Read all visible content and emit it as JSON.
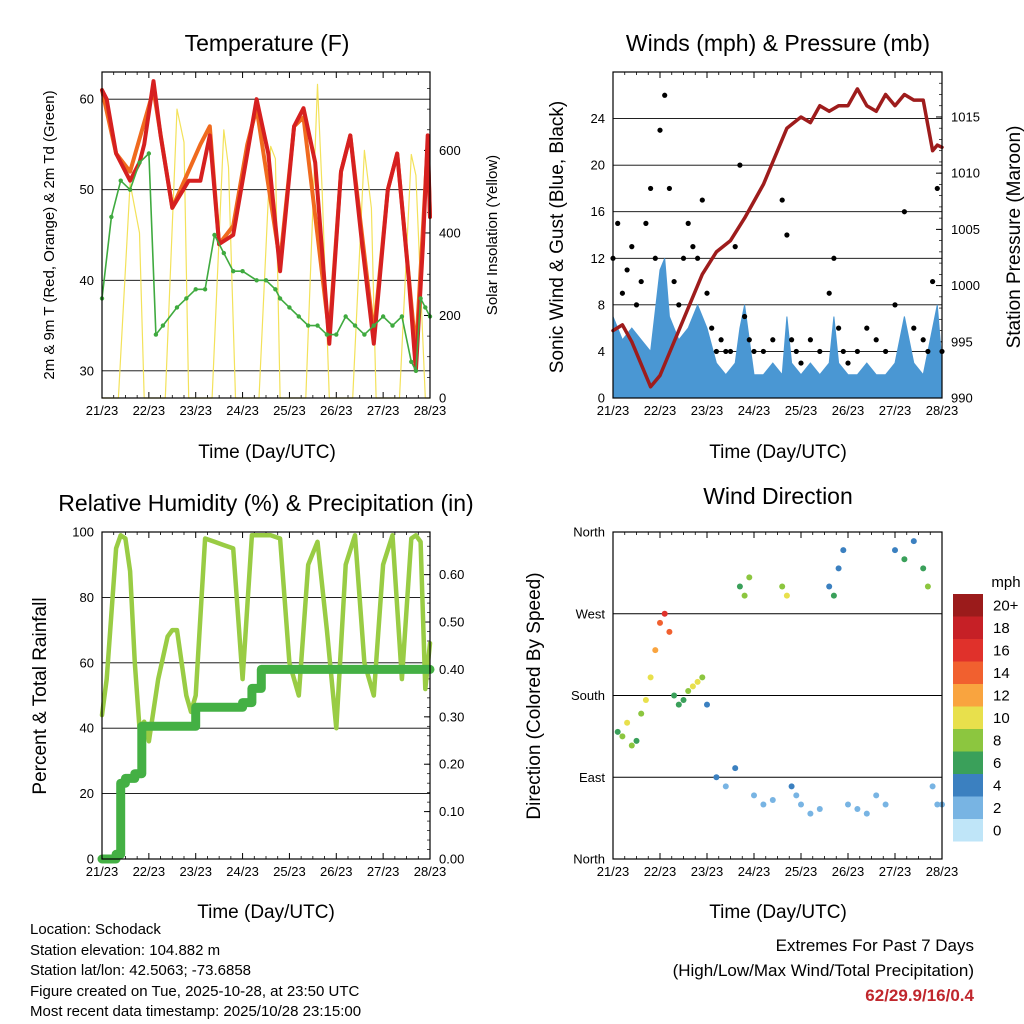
{
  "colors": {
    "t2m": "#d62020",
    "t9m": "#f06a1e",
    "td": "#3faa3f",
    "solar": "#f3e25a",
    "gust": "#000000",
    "wind": "#4a97d3",
    "pressure": "#9e1c1c",
    "rh": "#99cc44",
    "precip": "#44b044",
    "extremes": "#c0272d"
  },
  "time_ticks": [
    "21/23",
    "22/23",
    "23/23",
    "24/23",
    "25/23",
    "26/23",
    "27/23",
    "28/23"
  ],
  "panels": {
    "temperature": {
      "title": "Temperature (F)",
      "xlabel": "Time (Day/UTC)",
      "ylabel_left": "2m & 9m T (Red, Orange) & 2m Td (Green)",
      "ylabel_right": "Solar Insolation (Yellow)"
    },
    "winds": {
      "title": "Winds (mph) & Pressure (mb)",
      "xlabel": "Time (Day/UTC)",
      "ylabel_left": "Sonic Wind & Gust (Blue, Black)",
      "ylabel_right": "Station Pressure (Maroon)"
    },
    "humidity": {
      "title": "Relative Humidity (%) & Precipitation (in)",
      "xlabel": "Time (Day/UTC)",
      "ylabel_left": "Percent & Total Rainfall"
    },
    "direction": {
      "title": "Wind Direction",
      "xlabel": "Time (Day/UTC)",
      "ylabel_left": "Direction (Colored By Speed)",
      "colorbar_title": "mph",
      "colorbar_labels": [
        "20+",
        "18",
        "16",
        "14",
        "12",
        "10",
        "8",
        "6",
        "4",
        "2",
        "0"
      ],
      "colorbar_colors": [
        "#9b1b1b",
        "#c62026",
        "#e0312b",
        "#f1602f",
        "#f9a43f",
        "#e8e04c",
        "#8cc63f",
        "#3aa05a",
        "#3b80c0",
        "#78b4e3",
        "#bfe5f8"
      ]
    }
  },
  "chart_data": [
    {
      "type": "line",
      "name": "temperature",
      "title": "Temperature (F)",
      "xlabel": "Time (Day/UTC)",
      "xlim": [
        0,
        7
      ],
      "ylim": [
        27,
        63
      ],
      "y_ticks": [
        30,
        40,
        50,
        60
      ],
      "y2lim": [
        0,
        790
      ],
      "y2_ticks": [
        0,
        200,
        400,
        600
      ],
      "series": [
        {
          "name": "2m T",
          "axis": "left",
          "x": [
            0,
            0.1,
            0.3,
            0.6,
            0.8,
            0.9,
            1.1,
            1.25,
            1.5,
            1.85,
            2.1,
            2.3,
            2.5,
            2.8,
            3.1,
            3.3,
            3.55,
            3.8,
            4.1,
            4.3,
            4.55,
            4.85,
            5.1,
            5.3,
            5.55,
            5.8,
            6.1,
            6.3,
            6.55,
            6.7,
            6.85,
            6.95,
            7.0
          ],
          "values": [
            61,
            60,
            54,
            51,
            53,
            55,
            62,
            56,
            48,
            51,
            51,
            56,
            44,
            45,
            54,
            60,
            54,
            41,
            57,
            59,
            53,
            33,
            52,
            56,
            44,
            33,
            50,
            54,
            40,
            30,
            44,
            56,
            47
          ]
        },
        {
          "name": "9m T",
          "axis": "left",
          "x": [
            0,
            0.3,
            0.6,
            1.1,
            1.5,
            2.1,
            2.3,
            2.5,
            2.8,
            3.1,
            3.3,
            3.8,
            4.1,
            4.3,
            4.85,
            5.1,
            5.3,
            5.8,
            6.1,
            6.3,
            6.7,
            6.95,
            7.0
          ],
          "values": [
            61,
            54,
            52,
            61,
            48,
            55,
            57,
            44,
            46,
            55,
            59,
            42,
            57,
            58,
            34,
            52,
            56,
            34,
            50,
            54,
            32,
            55,
            47
          ]
        },
        {
          "name": "2m Td",
          "axis": "left",
          "x": [
            0,
            0.2,
            0.4,
            0.6,
            0.8,
            1.0,
            1.15,
            1.3,
            1.6,
            1.8,
            2.0,
            2.2,
            2.4,
            2.6,
            2.8,
            3.0,
            3.3,
            3.5,
            3.7,
            3.8,
            4.0,
            4.2,
            4.4,
            4.6,
            4.8,
            5.0,
            5.2,
            5.4,
            5.6,
            5.8,
            6.0,
            6.2,
            6.4,
            6.6,
            6.7,
            6.8,
            6.9,
            7.0
          ],
          "values": [
            38,
            47,
            51,
            50,
            53,
            54,
            34,
            35,
            37,
            38,
            39,
            39,
            45,
            43,
            41,
            41,
            40,
            40,
            39,
            38,
            37,
            36,
            35,
            35,
            34,
            34,
            36,
            35,
            34,
            35,
            36,
            35,
            36,
            31,
            30,
            38,
            37,
            36
          ]
        },
        {
          "name": "Solar Insolation",
          "axis": "right",
          "x": [
            0,
            0.35,
            0.6,
            0.8,
            0.9,
            1.35,
            1.6,
            1.75,
            1.85,
            2.35,
            2.6,
            2.7,
            2.85,
            3.35,
            3.6,
            3.7,
            3.8,
            4.35,
            4.6,
            4.7,
            4.85,
            5.35,
            5.6,
            5.75,
            5.85,
            6.35,
            6.6,
            6.7,
            6.9,
            7.0
          ],
          "values": [
            0,
            0,
            520,
            400,
            0,
            0,
            700,
            620,
            0,
            0,
            650,
            560,
            0,
            0,
            610,
            580,
            0,
            0,
            760,
            500,
            0,
            0,
            600,
            460,
            0,
            0,
            590,
            540,
            0,
            0
          ]
        }
      ]
    },
    {
      "type": "scatter",
      "name": "winds",
      "title": "Winds (mph) & Pressure (mb)",
      "xlabel": "Time (Day/UTC)",
      "xlim": [
        0,
        7
      ],
      "ylim": [
        0,
        28
      ],
      "y_ticks": [
        0,
        4,
        8,
        12,
        16,
        20,
        24
      ],
      "y2lim": [
        990,
        1019
      ],
      "y2_ticks": [
        990,
        995,
        1000,
        1005,
        1010,
        1015
      ],
      "series": [
        {
          "name": "Gust",
          "kind": "points",
          "x": [
            0,
            0.1,
            0.2,
            0.3,
            0.4,
            0.5,
            0.6,
            0.7,
            0.8,
            0.9,
            1.0,
            1.1,
            1.2,
            1.3,
            1.4,
            1.5,
            1.6,
            1.7,
            1.8,
            1.9,
            2.0,
            2.1,
            2.2,
            2.3,
            2.4,
            2.5,
            2.6,
            2.7,
            2.8,
            2.9,
            3.0,
            3.2,
            3.4,
            3.6,
            3.7,
            3.8,
            3.9,
            4.0,
            4.2,
            4.4,
            4.6,
            4.7,
            4.8,
            4.9,
            5.0,
            5.2,
            5.4,
            5.6,
            5.8,
            6.0,
            6.2,
            6.4,
            6.6,
            6.7,
            6.8,
            6.9,
            7.0
          ],
          "values": [
            12,
            15,
            9,
            11,
            13,
            8,
            10,
            15,
            18,
            12,
            23,
            26,
            18,
            10,
            8,
            12,
            15,
            13,
            12,
            17,
            9,
            6,
            4,
            5,
            4,
            4,
            13,
            20,
            7,
            5,
            4,
            4,
            5,
            17,
            14,
            5,
            4,
            3,
            5,
            4,
            9,
            12,
            6,
            4,
            3,
            4,
            6,
            5,
            4,
            8,
            16,
            6,
            5,
            4,
            10,
            18,
            4
          ]
        },
        {
          "name": "Wind",
          "kind": "band",
          "x": [
            0,
            0.2,
            0.4,
            0.6,
            0.8,
            1.0,
            1.1,
            1.2,
            1.4,
            1.6,
            1.8,
            2.0,
            2.2,
            2.4,
            2.6,
            2.7,
            2.8,
            3.0,
            3.2,
            3.4,
            3.6,
            3.7,
            3.8,
            4.0,
            4.2,
            4.4,
            4.6,
            4.7,
            4.8,
            5.0,
            5.2,
            5.4,
            5.6,
            5.8,
            6.0,
            6.2,
            6.4,
            6.6,
            6.8,
            6.9,
            7.0
          ],
          "values": [
            7,
            5,
            6,
            5,
            4,
            11,
            12,
            7,
            5,
            6,
            8,
            6,
            3,
            2,
            3,
            6,
            8,
            2,
            2,
            3,
            2,
            7,
            3,
            2,
            3,
            2,
            3,
            7,
            3,
            2,
            2,
            3,
            2,
            2,
            3,
            7,
            3,
            2,
            6,
            8,
            3
          ]
        },
        {
          "name": "Pressure",
          "kind": "line",
          "axis": "right",
          "x": [
            0,
            0.2,
            0.4,
            0.6,
            0.8,
            1.0,
            1.2,
            1.5,
            1.9,
            2.2,
            2.5,
            2.8,
            3.2,
            3.5,
            3.7,
            4.0,
            4.2,
            4.4,
            4.6,
            4.8,
            5.0,
            5.2,
            5.4,
            5.6,
            5.8,
            6.0,
            6.2,
            6.4,
            6.6,
            6.8,
            6.9,
            7.0
          ],
          "values": [
            996,
            996.5,
            995,
            993,
            991,
            992,
            994,
            997,
            1001,
            1003,
            1004,
            1006,
            1009,
            1012,
            1014,
            1015,
            1014.5,
            1016,
            1015.5,
            1016,
            1016,
            1017.5,
            1016,
            1015.5,
            1017,
            1016,
            1017,
            1016.5,
            1016.5,
            1012,
            1012.5,
            1012.3
          ]
        }
      ]
    },
    {
      "type": "line",
      "name": "humidity",
      "title": "Relative Humidity (%) & Precipitation (in)",
      "xlabel": "Time (Day/UTC)",
      "xlim": [
        0,
        7
      ],
      "ylim": [
        0,
        100
      ],
      "y_ticks": [
        0,
        20,
        40,
        60,
        80,
        100
      ],
      "y2lim": [
        0,
        0.69
      ],
      "y2_ticks": [
        0.0,
        0.1,
        0.2,
        0.3,
        0.4,
        0.5,
        0.6
      ],
      "series": [
        {
          "name": "Relative Humidity",
          "axis": "left",
          "x": [
            0,
            0.1,
            0.2,
            0.3,
            0.4,
            0.5,
            0.6,
            0.7,
            0.8,
            0.9,
            1.0,
            1.2,
            1.4,
            1.5,
            1.6,
            1.8,
            1.9,
            2.0,
            2.2,
            2.4,
            2.6,
            2.8,
            3.0,
            3.2,
            3.4,
            3.6,
            3.8,
            4.0,
            4.2,
            4.4,
            4.6,
            4.8,
            5.0,
            5.2,
            5.4,
            5.6,
            5.8,
            6.0,
            6.2,
            6.4,
            6.6,
            6.7,
            6.8,
            6.9,
            7.0
          ],
          "values": [
            44,
            55,
            75,
            95,
            99,
            98,
            88,
            60,
            40,
            42,
            36,
            55,
            68,
            70,
            70,
            50,
            45,
            50,
            98,
            97,
            96,
            95,
            55,
            99,
            99,
            99,
            98,
            60,
            50,
            90,
            97,
            70,
            40,
            90,
            99,
            60,
            50,
            90,
            99,
            55,
            98,
            99,
            97,
            52,
            66
          ]
        },
        {
          "name": "Total Precipitation",
          "axis": "right",
          "x": [
            0,
            0.1,
            0.3,
            0.4,
            0.5,
            0.6,
            0.7,
            0.8,
            0.85,
            1.0,
            1.5,
            1.9,
            2.0,
            2.5,
            3.0,
            3.2,
            3.4,
            7.0
          ],
          "values": [
            0,
            0,
            0.01,
            0.16,
            0.17,
            0.17,
            0.18,
            0.18,
            0.28,
            0.28,
            0.28,
            0.28,
            0.32,
            0.32,
            0.33,
            0.36,
            0.4,
            0.4
          ]
        }
      ]
    },
    {
      "type": "scatter",
      "name": "direction",
      "title": "Wind Direction",
      "xlabel": "Time (Day/UTC)",
      "xlim": [
        0,
        7
      ],
      "y_ticks": [
        "North",
        "East",
        "South",
        "West",
        "North"
      ],
      "y_tick_values": [
        0,
        90,
        180,
        270,
        360
      ],
      "series": [
        {
          "name": "Direction (colored by speed)",
          "x": [
            0.1,
            0.2,
            0.3,
            0.4,
            0.5,
            0.6,
            0.7,
            0.8,
            0.9,
            1.0,
            1.1,
            1.2,
            1.3,
            1.4,
            1.5,
            1.6,
            1.7,
            1.8,
            1.9,
            2.0,
            2.2,
            2.4,
            2.6,
            2.7,
            2.8,
            2.9,
            3.0,
            3.2,
            3.4,
            3.6,
            3.7,
            3.8,
            3.9,
            4.0,
            4.2,
            4.4,
            4.6,
            4.7,
            4.8,
            4.9,
            5.0,
            5.2,
            5.4,
            5.6,
            5.8,
            6.0,
            6.2,
            6.4,
            6.6,
            6.7,
            6.8,
            6.9,
            7.0
          ],
          "values": [
            140,
            135,
            150,
            125,
            130,
            160,
            175,
            200,
            230,
            260,
            270,
            250,
            180,
            170,
            175,
            185,
            190,
            195,
            200,
            170,
            90,
            80,
            100,
            300,
            290,
            310,
            70,
            60,
            65,
            300,
            290,
            80,
            70,
            60,
            50,
            55,
            300,
            290,
            320,
            340,
            60,
            55,
            50,
            70,
            60,
            340,
            330,
            350,
            320,
            300,
            80,
            60,
            60
          ],
          "speeds": [
            6,
            8,
            10,
            7,
            5,
            8,
            9,
            10,
            12,
            14,
            16,
            13,
            6,
            5,
            6,
            8,
            9,
            10,
            8,
            4,
            3,
            2,
            3,
            6,
            7,
            8,
            2,
            1,
            2,
            8,
            10,
            3,
            2,
            1,
            2,
            1,
            3,
            6,
            4,
            3,
            1,
            2,
            1,
            2,
            1,
            3,
            6,
            4,
            6,
            8,
            2,
            1,
            2
          ]
        }
      ]
    }
  ],
  "info": {
    "location": "Location: Schodack",
    "elevation": "Station elevation: 104.882 m",
    "latlon": "Station lat/lon: 42.5063; -73.6858",
    "created": "Figure created on Tue, 2025-10-28, at 23:50 UTC",
    "recent": "Most recent data timestamp: 2025/10/28 23:15:00"
  },
  "extremes": {
    "title": "Extremes For Past 7 Days",
    "subtitle": "(High/Low/Max Wind/Total Precipitation)",
    "values": "62/29.9/16/0.4"
  }
}
